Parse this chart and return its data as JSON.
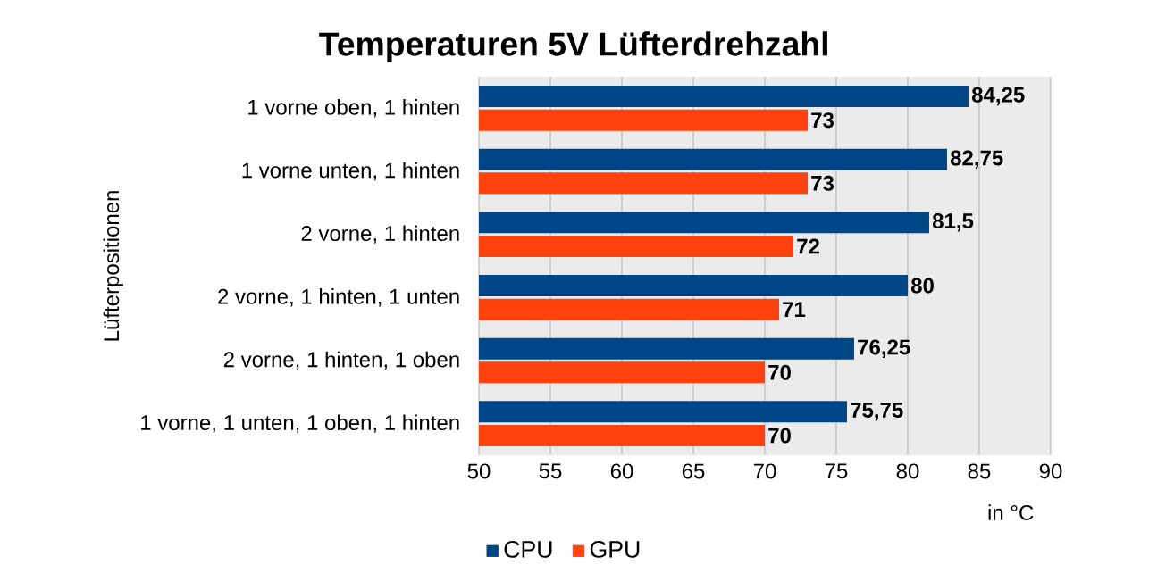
{
  "chart_data": {
    "type": "bar",
    "orientation": "horizontal",
    "title": "Temperaturen 5V Lüfterdrehzahl",
    "xlabel": "in °C",
    "ylabel": "Lüfterpositionen",
    "categories": [
      "1 vorne oben, 1 hinten",
      "1 vorne unten, 1 hinten",
      "2 vorne, 1 hinten",
      "2 vorne, 1 hinten, 1 unten",
      "2 vorne, 1 hinten, 1 oben",
      "1 vorne, 1 unten, 1 oben, 1 hinten"
    ],
    "series": [
      {
        "name": "CPU",
        "color": "#004586",
        "values": [
          84.25,
          82.75,
          81.5,
          80,
          76.25,
          75.75
        ],
        "value_labels": [
          "84,25",
          "82,75",
          "81,5",
          "80",
          "76,25",
          "75,75"
        ]
      },
      {
        "name": "GPU",
        "color": "#ff420e",
        "values": [
          73,
          73,
          72,
          71,
          70,
          70
        ],
        "value_labels": [
          "73",
          "73",
          "72",
          "71",
          "70",
          "70"
        ]
      }
    ],
    "xlim": [
      50,
      90
    ],
    "xticks": [
      50,
      55,
      60,
      65,
      70,
      75,
      80,
      85,
      90
    ],
    "grid": "x",
    "legend": "bottom"
  }
}
